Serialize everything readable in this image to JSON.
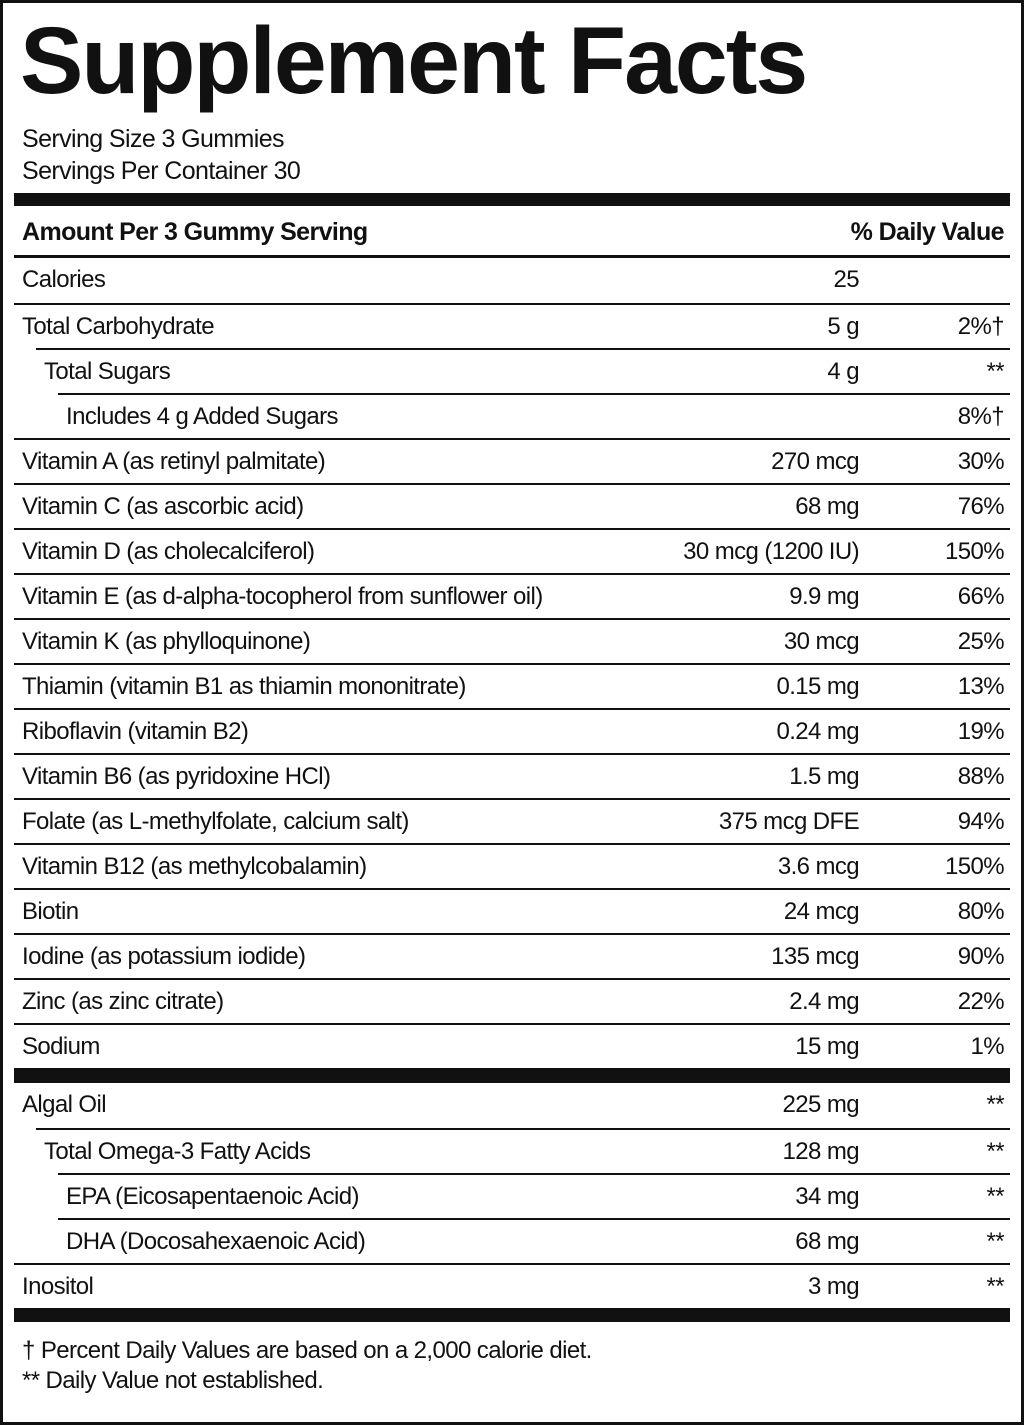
{
  "title": "Supplement Facts",
  "serving_size": "Serving Size 3 Gummies",
  "servings_per_container": "Servings Per Container 30",
  "header": {
    "amount": "Amount Per 3 Gummy Serving",
    "daily_value": "% Daily Value"
  },
  "nutrients": [
    {
      "name": "Calories",
      "amount": "25"
    },
    {
      "name": "Total Carbohydrate",
      "amount": "5 g",
      "dv": "2%†"
    },
    {
      "name": "Total Sugars",
      "amount": "4 g",
      "dv": "**"
    },
    {
      "name": "Includes 4 g Added Sugars",
      "dv": "8%†"
    },
    {
      "name": "Vitamin A (as retinyl palmitate)",
      "amount": "270 mcg",
      "dv": "30%"
    },
    {
      "name": "Vitamin C (as ascorbic acid)",
      "amount": "68 mg",
      "dv": "76%"
    },
    {
      "name": "Vitamin D (as cholecalciferol)",
      "amount": "30 mcg (1200 IU)",
      "dv": "150%"
    },
    {
      "name": "Vitamin E (as d-alpha-tocopherol from sunflower oil)",
      "amount": "9.9 mg",
      "dv": "66%"
    },
    {
      "name": "Vitamin K (as phylloquinone)",
      "amount": "30 mcg",
      "dv": "25%"
    },
    {
      "name": "Thiamin (vitamin B1 as thiamin mononitrate)",
      "amount": "0.15 mg",
      "dv": "13%"
    },
    {
      "name": "Riboflavin (vitamin B2)",
      "amount": "0.24 mg",
      "dv": "19%"
    },
    {
      "name": "Vitamin B6 (as pyridoxine HCl)",
      "amount": "1.5 mg",
      "dv": "88%"
    },
    {
      "name": "Folate (as L-methylfolate, calcium salt)",
      "amount": "375 mcg DFE",
      "dv": "94%"
    },
    {
      "name": "Vitamin B12 (as methylcobalamin)",
      "amount": "3.6 mcg",
      "dv": "150%"
    },
    {
      "name": "Biotin",
      "amount": "24 mcg",
      "dv": "80%"
    },
    {
      "name": "Iodine (as potassium iodide)",
      "amount": "135 mcg",
      "dv": "90%"
    },
    {
      "name": "Zinc (as zinc citrate)",
      "amount": "2.4 mg",
      "dv": "22%"
    },
    {
      "name": "Sodium",
      "amount": "15 mg",
      "dv": "1%"
    }
  ],
  "other": [
    {
      "name": "Algal Oil",
      "amount": "225 mg",
      "dv": "**"
    },
    {
      "name": "Total Omega-3 Fatty Acids",
      "amount": "128 mg",
      "dv": "**"
    },
    {
      "name": "EPA (Eicosapentaenoic Acid)",
      "amount": "34 mg",
      "dv": "**"
    },
    {
      "name": "DHA (Docosahexaenoic Acid)",
      "amount": "68 mg",
      "dv": "**"
    },
    {
      "name": "Inositol",
      "amount": "3 mg",
      "dv": "**"
    }
  ],
  "footnotes": [
    "† Percent Daily Values are based on a 2,000 calorie diet.",
    "** Daily Value not established."
  ]
}
